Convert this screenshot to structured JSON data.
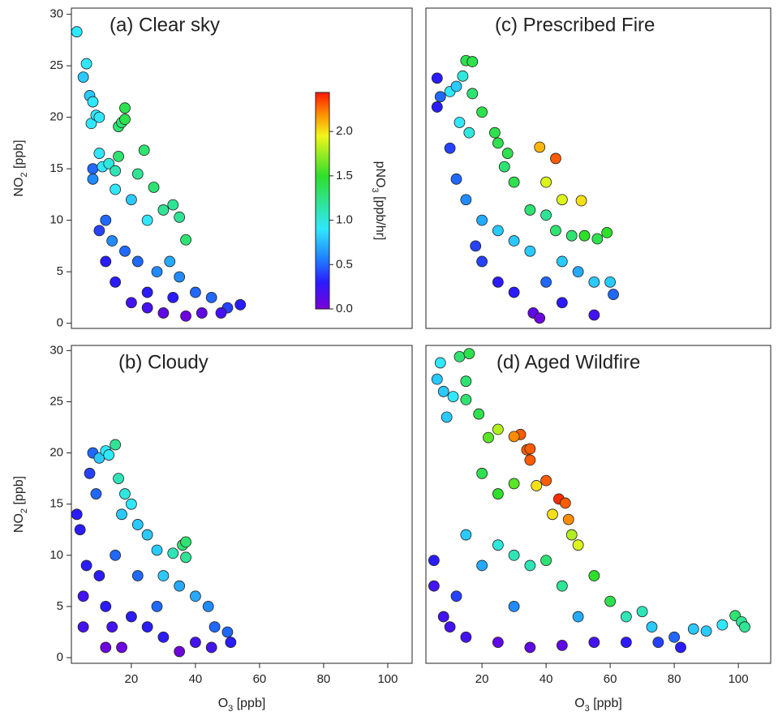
{
  "chart_data": [
    {
      "type": "scatter",
      "title": "(a) Clear sky",
      "ylabel": [
        "NO",
        "2",
        " [ppb]"
      ],
      "xlim": [
        1.3,
        107.6
      ],
      "ylim": [
        -0.5,
        30.6
      ],
      "yticks": [
        0,
        5,
        10,
        15,
        20,
        25,
        30
      ],
      "x": [
        3,
        5,
        6,
        7,
        8,
        7.5,
        9,
        10,
        8,
        8,
        10,
        11,
        13,
        15,
        16,
        17,
        18,
        18,
        16,
        24,
        22,
        27,
        15,
        20,
        25,
        30,
        33,
        35,
        37,
        12,
        14,
        18,
        22,
        28,
        32,
        35,
        40,
        45,
        50,
        54,
        15,
        20,
        25,
        30,
        37,
        42,
        10,
        12,
        48,
        25,
        33
      ],
      "y": [
        28.3,
        23.9,
        25.2,
        22.1,
        21.5,
        19.4,
        20.2,
        20.0,
        15,
        14,
        16.5,
        15.2,
        15.5,
        14.8,
        19.1,
        19.5,
        20.9,
        19.8,
        16.2,
        16.8,
        14.5,
        13.2,
        13,
        12,
        10,
        11,
        11.5,
        10.3,
        8.1,
        10,
        8,
        7,
        6,
        5,
        6,
        4.5,
        3,
        2.5,
        1.5,
        1.8,
        4,
        2,
        1.5,
        1,
        0.7,
        1,
        9,
        6,
        1,
        3,
        2.5
      ],
      "c": [
        0.9,
        0.8,
        0.9,
        0.8,
        0.9,
        0.9,
        0.9,
        0.9,
        0.5,
        0.6,
        0.9,
        0.9,
        1.0,
        1.1,
        1.3,
        1.3,
        1.4,
        1.4,
        1.3,
        1.3,
        1.2,
        1.3,
        0.9,
        0.8,
        0.9,
        1.2,
        1.2,
        1.2,
        1.3,
        0.5,
        0.6,
        0.5,
        0.5,
        0.6,
        0.7,
        0.6,
        0.5,
        0.5,
        0.4,
        0.3,
        0.3,
        0.2,
        0.2,
        0.1,
        0.05,
        0.1,
        0.4,
        0.3,
        0.2,
        0.3,
        0.3
      ]
    },
    {
      "type": "scatter",
      "title": "(b) Cloudy",
      "xlabel": [
        "O",
        "3",
        " [ppb]"
      ],
      "ylabel": [
        "NO",
        "2",
        " [ppb]"
      ],
      "xlim": [
        1.3,
        107.6
      ],
      "ylim": [
        -0.55,
        30.5
      ],
      "xticks": [
        20,
        40,
        60,
        80,
        100
      ],
      "yticks": [
        0,
        5,
        10,
        15,
        20,
        25,
        30
      ],
      "x": [
        3,
        4,
        5,
        5,
        7,
        8,
        9,
        10,
        12,
        13,
        15,
        16,
        18,
        17,
        20,
        22,
        25,
        28,
        33,
        36,
        37,
        37,
        30,
        35,
        40,
        44,
        46,
        50,
        51,
        10,
        12,
        14,
        12,
        17,
        20,
        25,
        30,
        35,
        40,
        45,
        6,
        15,
        22,
        28
      ],
      "y": [
        14,
        12.5,
        6,
        3,
        18,
        20,
        16,
        19.5,
        20.2,
        19.8,
        20.8,
        17.5,
        16,
        14,
        15,
        13,
        12,
        10.5,
        10.2,
        11,
        11.3,
        9.8,
        8,
        7,
        6,
        5,
        3,
        2.5,
        1.5,
        8,
        5,
        3,
        1,
        1,
        4,
        3,
        2,
        0.6,
        1.5,
        1,
        9,
        10,
        8,
        5
      ],
      "c": [
        0.3,
        0.3,
        0.2,
        0.2,
        0.4,
        0.5,
        0.5,
        0.8,
        0.9,
        0.9,
        1.2,
        1.1,
        1.0,
        0.8,
        0.9,
        0.8,
        0.8,
        0.8,
        1.1,
        1.3,
        1.3,
        1.2,
        0.8,
        0.7,
        0.7,
        0.6,
        0.5,
        0.5,
        0.3,
        0.3,
        0.3,
        0.2,
        0.05,
        0.05,
        0.3,
        0.3,
        0.3,
        0.05,
        0.2,
        0.2,
        0.3,
        0.5,
        0.5,
        0.5
      ]
    },
    {
      "type": "scatter",
      "title": "(c) Prescribed Fire",
      "xlim": [
        2.5,
        110.1
      ],
      "ylim": [
        -0.5,
        30.6
      ],
      "x": [
        6,
        6,
        7,
        10,
        12,
        14,
        15,
        17,
        17,
        13,
        20,
        16,
        24,
        25,
        28,
        27,
        30,
        38,
        43,
        40,
        45,
        51,
        35,
        40,
        43,
        48,
        52,
        56,
        59,
        10,
        12,
        15,
        20,
        25,
        30,
        35,
        45,
        50,
        55,
        60,
        61,
        20,
        25,
        30,
        36,
        38,
        45,
        55,
        18,
        40
      ],
      "y": [
        23.8,
        21,
        22,
        22.5,
        23,
        24,
        25.5,
        25.4,
        22.3,
        19.5,
        20.5,
        18.5,
        18.5,
        17.5,
        16.5,
        15.2,
        13.7,
        17.1,
        16,
        13.7,
        12,
        11.9,
        11,
        10.5,
        9,
        8.5,
        8.5,
        8.2,
        8.8,
        17,
        14,
        12,
        10,
        9,
        8,
        7,
        6,
        5,
        4,
        4,
        2.8,
        6,
        4,
        3,
        1,
        0.5,
        2,
        0.8,
        7.5,
        4
      ],
      "c": [
        0.3,
        0.3,
        0.5,
        0.9,
        0.8,
        1.0,
        1.4,
        1.4,
        1.3,
        0.9,
        1.4,
        1.0,
        1.4,
        1.4,
        1.4,
        1.3,
        1.4,
        2.1,
        2.3,
        1.9,
        1.9,
        2.0,
        1.3,
        1.2,
        1.3,
        1.3,
        1.5,
        1.4,
        1.5,
        0.4,
        0.5,
        0.6,
        0.7,
        0.8,
        0.8,
        0.8,
        0.8,
        0.7,
        0.8,
        0.8,
        0.5,
        0.4,
        0.3,
        0.3,
        0.1,
        0.05,
        0.3,
        0.2,
        0.4,
        0.5
      ]
    },
    {
      "type": "scatter",
      "title": "(d) Aged Wildfire",
      "xlabel": [
        "O",
        "3",
        " [ppb]"
      ],
      "xlim": [
        2.5,
        110.1
      ],
      "ylim": [
        -0.55,
        30.5
      ],
      "xticks": [
        20,
        40,
        60,
        80,
        100
      ],
      "x": [
        7,
        6,
        8,
        11,
        13,
        16,
        15,
        15,
        9,
        19,
        25,
        32,
        30,
        22,
        34,
        35,
        35,
        40,
        37,
        44,
        46,
        47,
        42,
        30,
        25,
        20,
        50,
        48,
        55,
        60,
        65,
        70,
        73,
        80,
        86,
        90,
        95,
        99,
        101,
        102,
        5,
        5,
        8,
        10,
        12,
        15,
        20,
        25,
        30,
        35,
        40,
        45,
        15,
        25,
        35,
        45,
        55,
        65,
        75,
        82,
        30,
        50
      ],
      "y": [
        28.8,
        27.2,
        26,
        25.5,
        29.4,
        29.7,
        27,
        25.2,
        23.5,
        23.8,
        22.3,
        21.8,
        21.6,
        21.5,
        20.3,
        20.4,
        19.3,
        17.3,
        16.8,
        15.5,
        15.1,
        13.5,
        14,
        17,
        16,
        18,
        11,
        12,
        8,
        5.5,
        4,
        4.5,
        3,
        2,
        2.8,
        2.6,
        3.2,
        4.1,
        3.5,
        3,
        9.5,
        7,
        4,
        3,
        6,
        12,
        9,
        11,
        10,
        9,
        9.5,
        7,
        2,
        1.5,
        1,
        1.2,
        1.5,
        1.5,
        1.5,
        1,
        5,
        4
      ],
      "c": [
        0.9,
        0.8,
        0.8,
        0.9,
        1.3,
        1.4,
        1.3,
        1.3,
        0.8,
        1.4,
        1.8,
        2.3,
        2.2,
        1.6,
        2.3,
        2.3,
        2.3,
        2.3,
        2.0,
        2.4,
        2.3,
        2.2,
        2.0,
        1.6,
        1.5,
        1.4,
        1.9,
        1.8,
        1.5,
        1.4,
        1.1,
        1.1,
        0.8,
        0.5,
        0.8,
        0.8,
        0.9,
        1.3,
        1.2,
        1.2,
        0.3,
        0.2,
        0.2,
        0.2,
        0.4,
        0.8,
        0.7,
        1.0,
        1.1,
        1.1,
        1.3,
        1.2,
        0.2,
        0.1,
        0.1,
        0.1,
        0.2,
        0.3,
        0.4,
        0.3,
        0.6,
        0.7
      ]
    }
  ],
  "colorbar": {
    "label": [
      "pNO",
      "3",
      " [ppb/hr]"
    ],
    "lim": [
      0,
      2.44
    ],
    "ticks": [
      {
        "value": 0,
        "label": "0.0"
      },
      {
        "value": 0.5,
        "label": "0.5"
      },
      {
        "value": 1,
        "label": "1.0"
      },
      {
        "value": 1.5,
        "label": "1.5"
      },
      {
        "value": 2,
        "label": "2.0"
      }
    ],
    "colormap": [
      {
        "value": 0,
        "color": "#7b00d8"
      },
      {
        "value": 0.3,
        "color": "#2a1cff"
      },
      {
        "value": 0.55,
        "color": "#1f7bff"
      },
      {
        "value": 0.9,
        "color": "#2fe8ff"
      },
      {
        "value": 1.5,
        "color": "#2ee02a"
      },
      {
        "value": 1.95,
        "color": "#f2f51a"
      },
      {
        "value": 2.2,
        "color": "#ff8c00"
      },
      {
        "value": 2.44,
        "color": "#ff1800"
      }
    ]
  }
}
